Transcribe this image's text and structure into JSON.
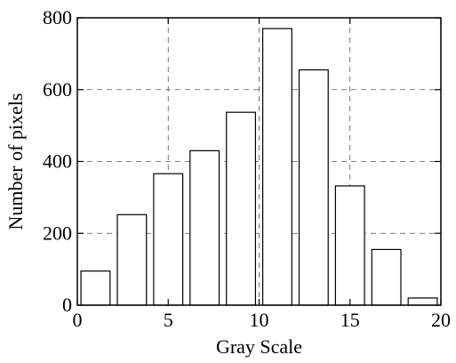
{
  "chart_data": {
    "type": "bar",
    "x": [
      1,
      3,
      5,
      7,
      9,
      11,
      13,
      15,
      17,
      19
    ],
    "values": [
      95,
      252,
      366,
      430,
      537,
      770,
      655,
      332,
      155,
      20
    ],
    "xlabel": "Gray Scale",
    "ylabel": "Number of pixels",
    "xlim": [
      0,
      20
    ],
    "ylim": [
      0,
      800
    ],
    "xticks": [
      0,
      5,
      10,
      15,
      20
    ],
    "yticks": [
      0,
      200,
      400,
      600,
      800
    ],
    "xtick_labels": [
      "0",
      "5",
      "10",
      "15",
      "20"
    ],
    "ytick_labels": [
      "0",
      "200",
      "400",
      "600",
      "800"
    ],
    "bar_width": 1.6,
    "grid": true
  }
}
